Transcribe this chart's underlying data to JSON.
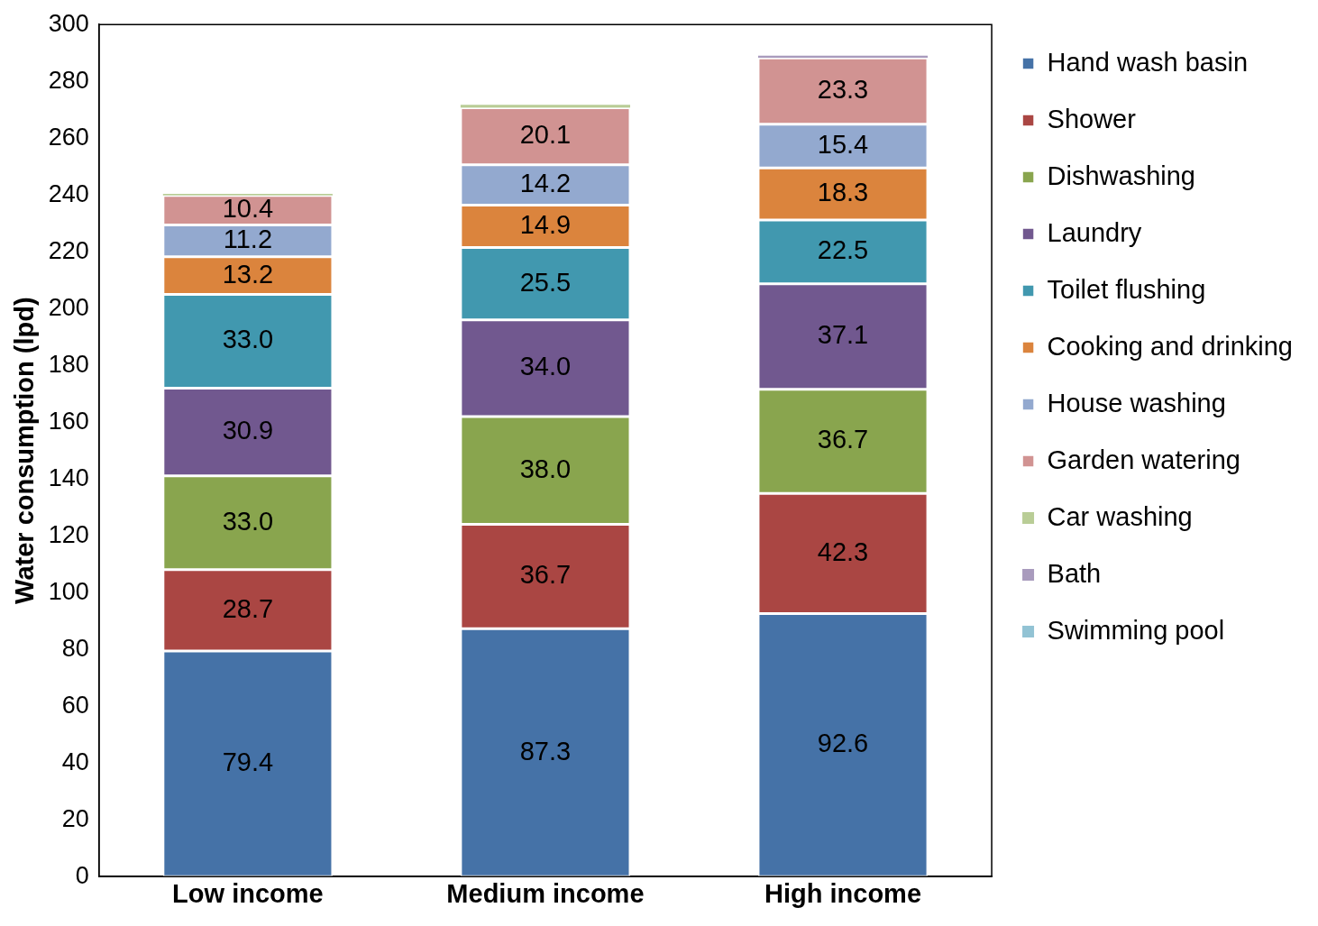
{
  "chart_data": {
    "type": "bar",
    "stacked": true,
    "ylabel": "Water consumption (lpd)",
    "categories": [
      "Low income",
      "Medium income",
      "High income"
    ],
    "ylim": [
      0,
      300
    ],
    "yticks": [
      0,
      20,
      40,
      60,
      80,
      100,
      120,
      140,
      160,
      180,
      200,
      220,
      240,
      260,
      280,
      300
    ],
    "grid": false,
    "legend": "right",
    "series": [
      {
        "name": "Hand wash basin",
        "color": "#4572a7",
        "values": [
          79.4,
          87.3,
          92.6
        ],
        "value_labels": [
          "79.4",
          "87.3",
          "92.6"
        ]
      },
      {
        "name": "Shower",
        "color": "#aa4643",
        "values": [
          28.7,
          36.7,
          42.3
        ],
        "value_labels": [
          "28.7",
          "36.7",
          "42.3"
        ]
      },
      {
        "name": "Dishwashing",
        "color": "#89a54e",
        "values": [
          33.0,
          38.0,
          36.7
        ],
        "value_labels": [
          "33.0",
          "38.0",
          "36.7"
        ]
      },
      {
        "name": "Laundry",
        "color": "#71588f",
        "values": [
          30.9,
          34.0,
          37.1
        ],
        "value_labels": [
          "30.9",
          "34.0",
          "37.1"
        ]
      },
      {
        "name": "Toilet flushing",
        "color": "#4198af",
        "values": [
          33.0,
          25.5,
          22.5
        ],
        "value_labels": [
          "33.0",
          "25.5",
          "22.5"
        ]
      },
      {
        "name": "Cooking and drinking",
        "color": "#db843d",
        "values": [
          13.2,
          14.9,
          18.3
        ],
        "value_labels": [
          "13.2",
          "14.9",
          "18.3"
        ]
      },
      {
        "name": "House washing",
        "color": "#93a9cf",
        "values": [
          11.2,
          14.2,
          15.4
        ],
        "value_labels": [
          "11.2",
          "14.2",
          "15.4"
        ]
      },
      {
        "name": "Garden watering",
        "color": "#d19392",
        "values": [
          10.4,
          20.1,
          23.3
        ],
        "value_labels": [
          "10.4",
          "20.1",
          "23.3"
        ]
      },
      {
        "name": "Car washing",
        "color": "#b9cd96",
        "values": [
          0.6,
          1.0,
          0
        ],
        "value_labels": [
          null,
          null,
          null
        ]
      },
      {
        "name": "Bath",
        "color": "#a99bbd",
        "values": [
          0,
          0,
          0.8
        ],
        "value_labels": [
          null,
          null,
          null
        ]
      },
      {
        "name": "Swimming pool",
        "color": "#92c3d4",
        "values": [
          0,
          0,
          0
        ],
        "value_labels": [
          null,
          null,
          null
        ]
      }
    ]
  }
}
